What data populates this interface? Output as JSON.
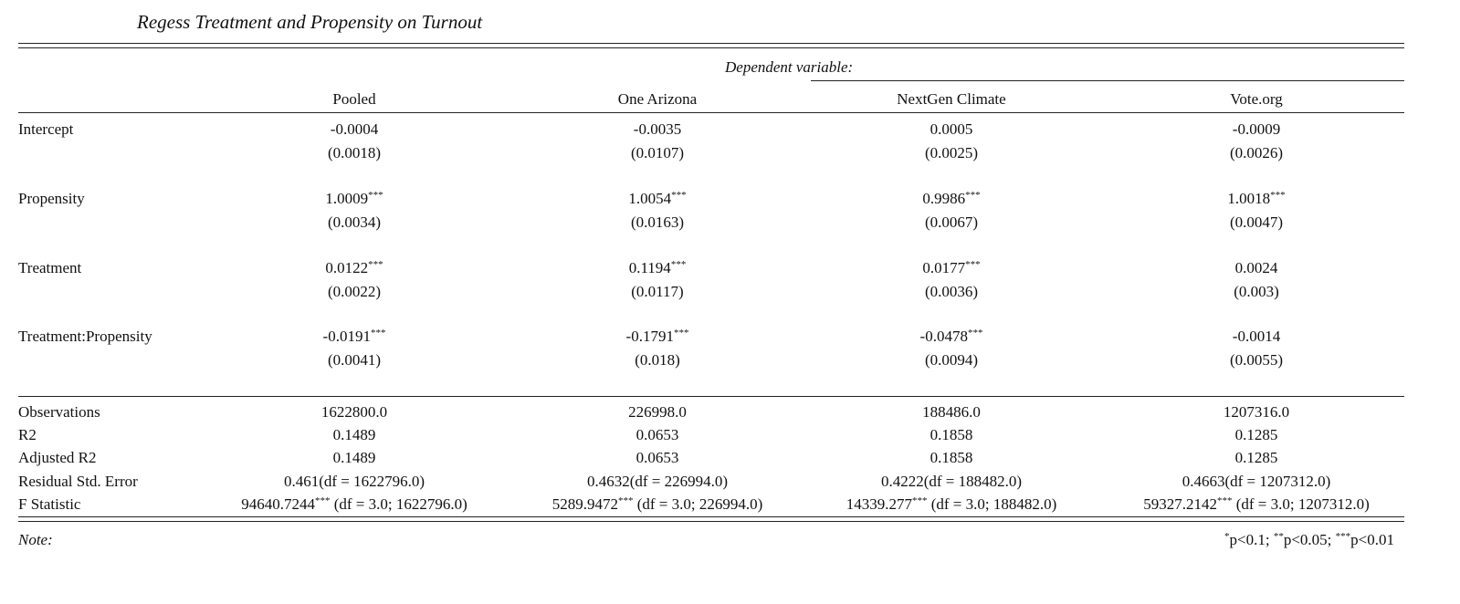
{
  "title": "Regess Treatment and Propensity on Turnout",
  "dependent_variable_label": "Dependent variable:",
  "columns": [
    "Pooled",
    "One Arizona",
    "NextGen Climate",
    "Vote.org"
  ],
  "coefficients": [
    {
      "label": "Intercept",
      "estimates": [
        {
          "value": "-0.0004",
          "stars": ""
        },
        {
          "value": "-0.0035",
          "stars": ""
        },
        {
          "value": "0.0005",
          "stars": ""
        },
        {
          "value": "-0.0009",
          "stars": ""
        }
      ],
      "std_errors": [
        "(0.0018)",
        "(0.0107)",
        "(0.0025)",
        "(0.0026)"
      ]
    },
    {
      "label": "Propensity",
      "estimates": [
        {
          "value": "1.0009",
          "stars": "***"
        },
        {
          "value": "1.0054",
          "stars": "***"
        },
        {
          "value": "0.9986",
          "stars": "***"
        },
        {
          "value": "1.0018",
          "stars": "***"
        }
      ],
      "std_errors": [
        "(0.0034)",
        "(0.0163)",
        "(0.0067)",
        "(0.0047)"
      ]
    },
    {
      "label": "Treatment",
      "estimates": [
        {
          "value": "0.0122",
          "stars": "***"
        },
        {
          "value": "0.1194",
          "stars": "***"
        },
        {
          "value": "0.0177",
          "stars": "***"
        },
        {
          "value": "0.0024",
          "stars": ""
        }
      ],
      "std_errors": [
        "(0.0022)",
        "(0.0117)",
        "(0.0036)",
        "(0.003)"
      ]
    },
    {
      "label": "Treatment:Propensity",
      "estimates": [
        {
          "value": "-0.0191",
          "stars": "***"
        },
        {
          "value": "-0.1791",
          "stars": "***"
        },
        {
          "value": "-0.0478",
          "stars": "***"
        },
        {
          "value": "-0.0014",
          "stars": ""
        }
      ],
      "std_errors": [
        "(0.0041)",
        "(0.018)",
        "(0.0094)",
        "(0.0055)"
      ]
    }
  ],
  "statistics": [
    {
      "label": "Observations",
      "cells": [
        {
          "value": "1622800.0",
          "stars": "",
          "suffix": ""
        },
        {
          "value": "226998.0",
          "stars": "",
          "suffix": ""
        },
        {
          "value": "188486.0",
          "stars": "",
          "suffix": ""
        },
        {
          "value": "1207316.0",
          "stars": "",
          "suffix": ""
        }
      ]
    },
    {
      "label": "R2",
      "cells": [
        {
          "value": "0.1489",
          "stars": "",
          "suffix": ""
        },
        {
          "value": "0.0653",
          "stars": "",
          "suffix": ""
        },
        {
          "value": "0.1858",
          "stars": "",
          "suffix": ""
        },
        {
          "value": "0.1285",
          "stars": "",
          "suffix": ""
        }
      ]
    },
    {
      "label": "Adjusted R2",
      "cells": [
        {
          "value": "0.1489",
          "stars": "",
          "suffix": ""
        },
        {
          "value": "0.0653",
          "stars": "",
          "suffix": ""
        },
        {
          "value": "0.1858",
          "stars": "",
          "suffix": ""
        },
        {
          "value": "0.1285",
          "stars": "",
          "suffix": ""
        }
      ]
    },
    {
      "label": "Residual Std. Error",
      "cells": [
        {
          "value": "0.461(df = 1622796.0)",
          "stars": "",
          "suffix": ""
        },
        {
          "value": "0.4632(df = 226994.0)",
          "stars": "",
          "suffix": ""
        },
        {
          "value": "0.4222(df = 188482.0)",
          "stars": "",
          "suffix": ""
        },
        {
          "value": "0.4663(df = 1207312.0)",
          "stars": "",
          "suffix": ""
        }
      ]
    },
    {
      "label": "F Statistic",
      "cells": [
        {
          "value": "94640.7244",
          "stars": "***",
          "suffix": " (df = 3.0; 1622796.0)"
        },
        {
          "value": "5289.9472",
          "stars": "***",
          "suffix": " (df = 3.0; 226994.0)"
        },
        {
          "value": "14339.277",
          "stars": "***",
          "suffix": " (df = 3.0; 188482.0)"
        },
        {
          "value": "59327.2142",
          "stars": "***",
          "suffix": " (df = 3.0; 1207312.0)"
        }
      ]
    }
  ],
  "note": {
    "label": "Note:",
    "levels": [
      {
        "stars": "*",
        "text": "p<0.1; "
      },
      {
        "stars": "**",
        "text": "p<0.05; "
      },
      {
        "stars": "***",
        "text": "p<0.01"
      }
    ]
  }
}
